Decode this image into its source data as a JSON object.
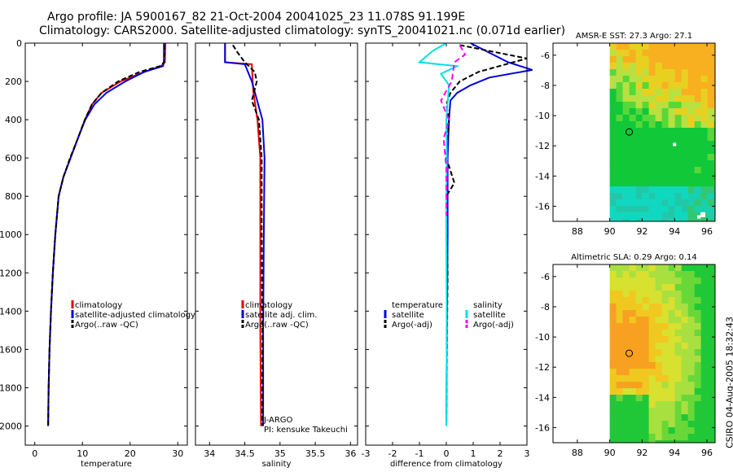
{
  "header": {
    "line1": "Argo profile: JA 5900167_82 21-Oct-2004 20041025_23 11.078S 91.199E",
    "line2": "Climatology: CARS2000. Satellite-adjusted climatology: synTS_20041021.nc (0.071d earlier)"
  },
  "side_stamp": "CSIRO 04-Aug-2005 18:32:43",
  "colors": {
    "climatology": "#e00000",
    "satellite": "#0000dd",
    "argo": "#000000",
    "salinity": "#00e0e8",
    "salinity_argo": "#ff00ff"
  },
  "chart_data": [
    {
      "type": "line",
      "name": "temperature",
      "xlabel": "temperature",
      "ylabel": "",
      "xlim": [
        -2,
        32
      ],
      "ylim": [
        0,
        2100
      ],
      "y_inverted": true,
      "xticks": [
        0,
        10,
        20,
        30
      ],
      "yticks": [
        0,
        200,
        400,
        600,
        800,
        1000,
        1200,
        1400,
        1600,
        1800,
        2000
      ],
      "legend": [
        "climatology",
        "satellite-adjusted climatology",
        "Argo(..raw -QC)"
      ],
      "series": [
        {
          "name": "climatology",
          "color": "#e00000",
          "dash": "",
          "x": [
            27.4,
            27.3,
            26.5,
            23,
            18,
            14,
            12,
            10.5,
            9,
            7.5,
            6,
            5,
            4.3,
            3.8,
            3.4,
            3.1,
            2.9,
            2.8
          ],
          "y": [
            0,
            100,
            120,
            150,
            200,
            260,
            320,
            400,
            500,
            600,
            700,
            800,
            1000,
            1200,
            1400,
            1600,
            1800,
            2000
          ]
        },
        {
          "name": "satellite-adjusted climatology",
          "color": "#0000dd",
          "dash": "",
          "x": [
            27.1,
            27.1,
            26.9,
            23,
            19,
            15,
            12.5,
            10.6,
            9,
            7.5,
            6,
            5,
            4.3,
            3.8,
            3.4,
            3.1,
            2.9,
            2.8
          ],
          "y": [
            0,
            100,
            120,
            150,
            200,
            260,
            320,
            400,
            500,
            600,
            700,
            800,
            1000,
            1200,
            1400,
            1600,
            1800,
            2000
          ]
        },
        {
          "name": "Argo(..raw -QC)",
          "color": "#000000",
          "dash": "6,3",
          "x": [
            27.2,
            27.1,
            26.3,
            22,
            17.5,
            14,
            12,
            10.5,
            9,
            7.4,
            6,
            5,
            4.3,
            3.8,
            3.4,
            3.1,
            2.9,
            2.8
          ],
          "y": [
            10,
            100,
            120,
            150,
            200,
            260,
            320,
            400,
            500,
            600,
            700,
            800,
            1000,
            1200,
            1400,
            1600,
            1800,
            2000
          ]
        }
      ]
    },
    {
      "type": "line",
      "name": "salinity",
      "xlabel": "salinity",
      "xlim": [
        33.8,
        36.1
      ],
      "ylim": [
        0,
        2100
      ],
      "y_inverted": true,
      "xticks": [
        34,
        34.5,
        35,
        35.5,
        36
      ],
      "yticks": [
        0,
        200,
        400,
        600,
        800,
        1000,
        1200,
        1400,
        1600,
        1800,
        2000
      ],
      "legend": [
        "climatology",
        "satellite adj. clim.",
        "Argo(..raw -QC)"
      ],
      "annotations": [
        "J-ARGO",
        "PI: kensuke Takeuchi"
      ],
      "series": [
        {
          "name": "climatology",
          "color": "#e00000",
          "dash": "",
          "x": [
            34.22,
            34.22,
            34.6,
            34.62,
            34.68,
            34.72,
            34.72,
            34.72,
            34.73
          ],
          "y": [
            0,
            100,
            110,
            250,
            400,
            600,
            1000,
            1500,
            2000
          ]
        },
        {
          "name": "satellite adj. clim.",
          "color": "#0000dd",
          "dash": "",
          "x": [
            34.22,
            34.22,
            34.5,
            34.6,
            34.75,
            34.78,
            34.77,
            34.76,
            34.76
          ],
          "y": [
            0,
            100,
            110,
            200,
            400,
            600,
            1000,
            1500,
            2000
          ]
        },
        {
          "name": "Argo(..raw -QC)",
          "color": "#000000",
          "dash": "6,3",
          "x": [
            34.33,
            34.4,
            34.5,
            34.64,
            34.67,
            34.6,
            34.7,
            34.74,
            34.74,
            34.75,
            34.75
          ],
          "y": [
            10,
            50,
            100,
            150,
            200,
            300,
            400,
            600,
            1000,
            1500,
            2000
          ]
        }
      ]
    },
    {
      "type": "line",
      "name": "difference",
      "xlabel": "difference from climatology",
      "xlim": [
        -3,
        3
      ],
      "ylim": [
        0,
        2100
      ],
      "y_inverted": true,
      "xticks": [
        -3,
        -2,
        -1,
        0,
        1,
        2,
        3
      ],
      "yticks": [
        0,
        200,
        400,
        600,
        800,
        1000,
        1200,
        1400,
        1600,
        1800,
        2000
      ],
      "legend_left_title": "temperature",
      "legend_right_title": "salinity",
      "legend_left": [
        "satellite",
        "Argo(-adj)"
      ],
      "legend_right": [
        "satellite",
        "Argo(-adj)"
      ],
      "series": [
        {
          "name": "temperature satellite",
          "color": "#0000dd",
          "dash": "",
          "x": [
            0.9,
            2.3,
            3.2,
            1.6,
            0.9,
            0.4,
            0.15,
            0.1,
            0.05,
            0.05,
            0.02,
            0.0
          ],
          "y": [
            0,
            100,
            140,
            180,
            220,
            260,
            300,
            400,
            600,
            1000,
            1500,
            2000
          ]
        },
        {
          "name": "temperature Argo(-adj)",
          "color": "#000000",
          "dash": "6,3",
          "x": [
            0.5,
            3.0,
            1.2,
            0.5,
            0.15,
            0.0,
            0.1,
            0.0,
            0.3,
            0.0,
            0.05,
            0.0
          ],
          "y": [
            10,
            80,
            150,
            200,
            260,
            320,
            400,
            600,
            730,
            800,
            1200,
            2000
          ]
        },
        {
          "name": "salinity satellite",
          "color": "#00e0e8",
          "dash": "",
          "x": [
            0.0,
            -0.5,
            -1.0,
            0.4,
            -0.2,
            0.1,
            0.0,
            0.02,
            0.0,
            0.0,
            0.02,
            0.0
          ],
          "y": [
            0,
            40,
            100,
            120,
            160,
            220,
            400,
            600,
            800,
            1000,
            1500,
            2000
          ]
        },
        {
          "name": "salinity Argo(-adj)",
          "color": "#ff00ff",
          "dash": "7,4",
          "x": [
            0.5,
            0.7,
            0.3,
            0.2,
            -0.2,
            0.1,
            -0.1,
            0.0,
            0.0
          ],
          "y": [
            10,
            60,
            100,
            200,
            300,
            400,
            500,
            650,
            900
          ]
        }
      ]
    },
    {
      "type": "heatmap",
      "name": "sst_map",
      "title": "AMSR-E SST: 27.3  Argo: 27.1",
      "xlim": [
        86.5,
        96.5
      ],
      "ylim": [
        -17,
        -5.2
      ],
      "xticks": [
        88,
        90,
        92,
        94,
        96
      ],
      "yticks": [
        -6,
        -8,
        -10,
        -12,
        -14,
        -16
      ],
      "data_xmin": 90,
      "marker": {
        "lon": 91.2,
        "lat": -11.08
      }
    },
    {
      "type": "heatmap",
      "name": "sla_map",
      "title": "Altimetric SLA: 0.29  Argo: 0.14",
      "xlim": [
        86.5,
        96.5
      ],
      "ylim": [
        -17,
        -5.2
      ],
      "xticks": [
        88,
        90,
        92,
        94,
        96
      ],
      "yticks": [
        -6,
        -8,
        -10,
        -12,
        -14,
        -16
      ],
      "data_xmin": 90,
      "marker": {
        "lon": 91.2,
        "lat": -11.08
      }
    }
  ]
}
